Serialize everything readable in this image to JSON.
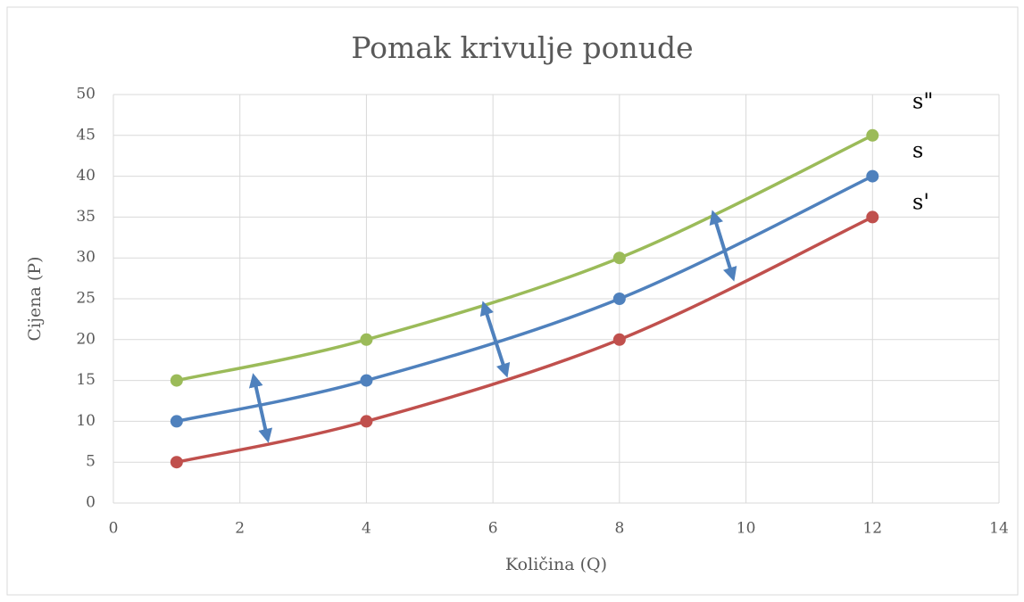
{
  "chart_data": {
    "type": "line",
    "title": "Pomak krivulje ponude",
    "x_label": "Količina (Q)",
    "y_label": "Cijena (P)",
    "x": [
      1,
      4,
      8,
      12
    ],
    "series": [
      {
        "name": "s\"",
        "color": "#9bbb59",
        "values": [
          15,
          20,
          30,
          45
        ]
      },
      {
        "name": "s",
        "color": "#4f81bd",
        "values": [
          10,
          15,
          25,
          40
        ]
      },
      {
        "name": "s'",
        "color": "#c0504d",
        "values": [
          5,
          10,
          20,
          35
        ]
      }
    ],
    "xlim": [
      0,
      14
    ],
    "xticks": [
      0,
      2,
      4,
      6,
      8,
      10,
      12,
      14
    ],
    "ylim": [
      0,
      50
    ],
    "yticks": [
      0,
      5,
      10,
      15,
      20,
      25,
      30,
      35,
      40,
      45,
      50
    ],
    "grid": true,
    "smooth": true
  }
}
